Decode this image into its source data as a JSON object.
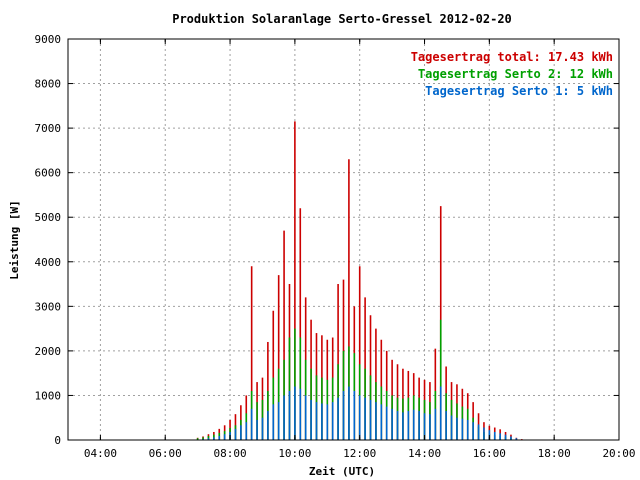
{
  "chart_data": {
    "type": "bar",
    "title": "Produktion Solaranlage Serto-Gressel 2012-02-20",
    "xlabel": "Zeit (UTC)",
    "ylabel": "Leistung [W]",
    "xlim": [
      "03:00",
      "20:00"
    ],
    "ylim": [
      0,
      9000
    ],
    "x_tick_labels": [
      "04:00",
      "06:00",
      "08:00",
      "10:00",
      "12:00",
      "14:00",
      "16:00",
      "18:00",
      "20:00"
    ],
    "y_tick_labels": [
      "0",
      "1000",
      "2000",
      "3000",
      "4000",
      "5000",
      "6000",
      "7000",
      "8000",
      "9000"
    ],
    "grid": true,
    "legend_position": "top-right",
    "stacked": true,
    "legend": [
      {
        "label": "Tagesertrag total: 17.43 kWh",
        "color": "#cc0000"
      },
      {
        "label": "Tagesertrag Serto 2: 12 kWh",
        "color": "#00a000"
      },
      {
        "label": "Tagesertrag Serto 1: 5 kWh",
        "color": "#0066cc"
      }
    ],
    "x": [
      "07:00",
      "07:10",
      "07:20",
      "07:30",
      "07:40",
      "07:50",
      "08:00",
      "08:10",
      "08:20",
      "08:30",
      "08:40",
      "08:50",
      "09:00",
      "09:10",
      "09:20",
      "09:30",
      "09:40",
      "09:50",
      "10:00",
      "10:10",
      "10:20",
      "10:30",
      "10:40",
      "10:50",
      "11:00",
      "11:10",
      "11:20",
      "11:30",
      "11:40",
      "11:50",
      "12:00",
      "12:10",
      "12:20",
      "12:30",
      "12:40",
      "12:50",
      "13:00",
      "13:10",
      "13:20",
      "13:30",
      "13:40",
      "13:50",
      "14:00",
      "14:10",
      "14:20",
      "14:30",
      "14:40",
      "14:50",
      "15:00",
      "15:10",
      "15:20",
      "15:30",
      "15:40",
      "15:50",
      "16:00",
      "16:10",
      "16:20",
      "16:30",
      "16:40",
      "16:50",
      "17:00"
    ],
    "series": [
      {
        "name": "Serto 1",
        "color": "#0066cc",
        "values": [
          10,
          20,
          40,
          60,
          90,
          130,
          180,
          250,
          330,
          400,
          700,
          450,
          500,
          650,
          800,
          850,
          1000,
          1100,
          1200,
          1150,
          1000,
          900,
          850,
          820,
          800,
          850,
          950,
          1100,
          1200,
          1100,
          1000,
          950,
          900,
          850,
          800,
          750,
          700,
          650,
          620,
          650,
          680,
          650,
          600,
          580,
          700,
          1200,
          650,
          550,
          500,
          480,
          450,
          400,
          350,
          280,
          220,
          180,
          150,
          120,
          80,
          40,
          10
        ]
      },
      {
        "name": "Serto 2",
        "color": "#00a000",
        "values": [
          40,
          60,
          90,
          120,
          160,
          200,
          270,
          330,
          450,
          600,
          1100,
          850,
          900,
          1100,
          1400,
          1600,
          1800,
          2300,
          2500,
          2300,
          1800,
          1600,
          1450,
          1400,
          1350,
          1400,
          1700,
          2000,
          2100,
          1950,
          1700,
          1600,
          1450,
          1300,
          1200,
          1100,
          1000,
          950,
          930,
          950,
          1000,
          950,
          900,
          850,
          1100,
          2700,
          1050,
          900,
          820,
          750,
          700,
          500,
          300,
          180,
          140,
          110,
          90,
          70,
          50,
          20,
          10
        ]
      },
      {
        "name": "total",
        "color": "#cc0000",
        "values": [
          50,
          80,
          130,
          180,
          250,
          330,
          450,
          580,
          780,
          1000,
          3900,
          1300,
          1400,
          2200,
          2900,
          3700,
          4700,
          3500,
          7150,
          5200,
          3200,
          2700,
          2400,
          2350,
          2250,
          2300,
          3500,
          3600,
          6300,
          3000,
          3900,
          3200,
          2800,
          2500,
          2250,
          2000,
          1800,
          1700,
          1600,
          1550,
          1500,
          1400,
          1350,
          1300,
          2050,
          5250,
          1650,
          1300,
          1250,
          1150,
          1050,
          850,
          600,
          400,
          320,
          280,
          240,
          180,
          120,
          50,
          20
        ]
      }
    ]
  }
}
